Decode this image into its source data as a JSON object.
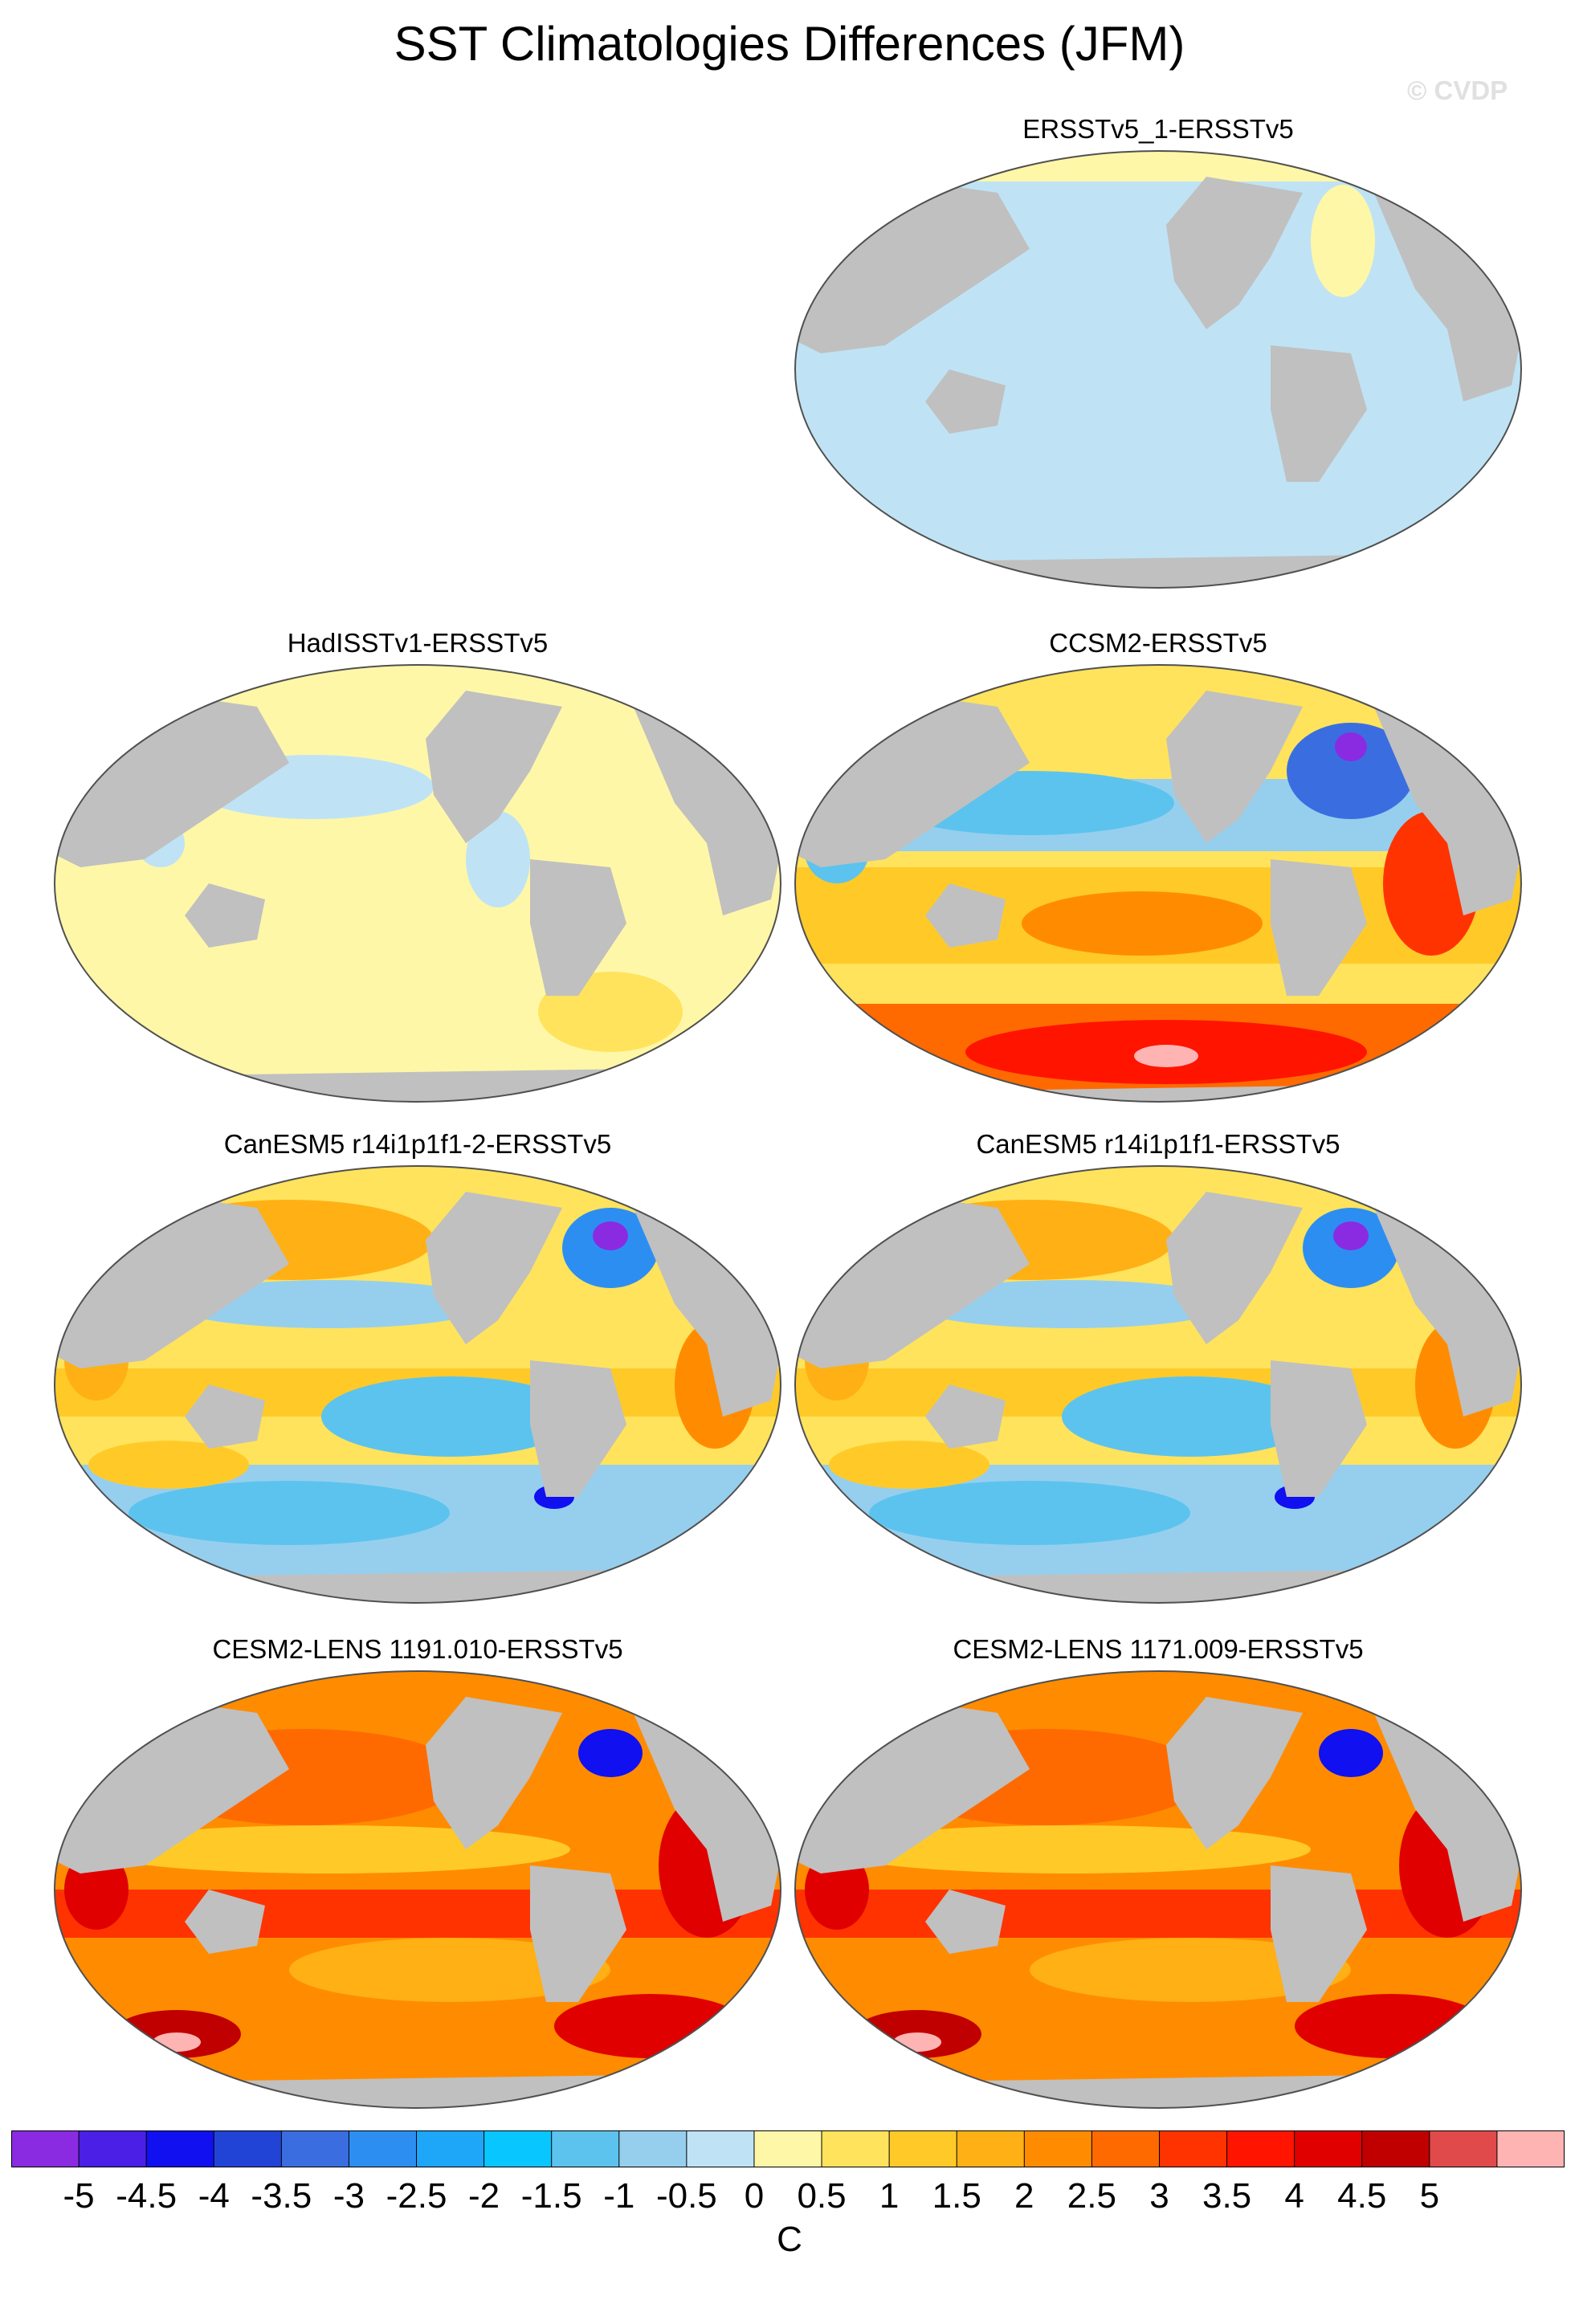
{
  "title": "SST Climatologies Differences (JFM)",
  "watermark": "© CVDP",
  "colors": {
    "land": "#c0c0c0",
    "outline": "#505050",
    "bar_levels": [
      "#8a2be2",
      "#4b1fe6",
      "#1010f0",
      "#2244d6",
      "#3a6ee0",
      "#2d8ef2",
      "#1ea6f8",
      "#08c6ff",
      "#5cc3ee",
      "#96cfee",
      "#bfe3f5",
      "#fff7a8",
      "#ffe35c",
      "#ffca28",
      "#ffb014",
      "#ff8c00",
      "#ff6a00",
      "#ff3300",
      "#ff1400",
      "#e00000",
      "#c00000",
      "#e04a4a",
      "#ffb4b4"
    ]
  },
  "colorbar": {
    "labels": [
      "-5",
      "-4.5",
      "-4",
      "-3.5",
      "-3",
      "-2.5",
      "-2",
      "-1.5",
      "-1",
      "-0.5",
      "0",
      "0.5",
      "1",
      "1.5",
      "2",
      "2.5",
      "3",
      "3.5",
      "4",
      "4.5",
      "5"
    ],
    "unit": "C"
  },
  "panels": [
    {
      "title": "ERSSTv5_1-ERSSTv5"
    },
    {
      "title": "HadISSTv1-ERSSTv5"
    },
    {
      "title": "CCSM2-ERSSTv5"
    },
    {
      "title": "CanESM5 r14i1p1f1-2-ERSSTv5"
    },
    {
      "title": "CanESM5 r14i1p1f1-ERSSTv5"
    },
    {
      "title": "CESM2-LENS 1191.010-ERSSTv5"
    },
    {
      "title": "CESM2-LENS 1171.009-ERSSTv5"
    }
  ]
}
